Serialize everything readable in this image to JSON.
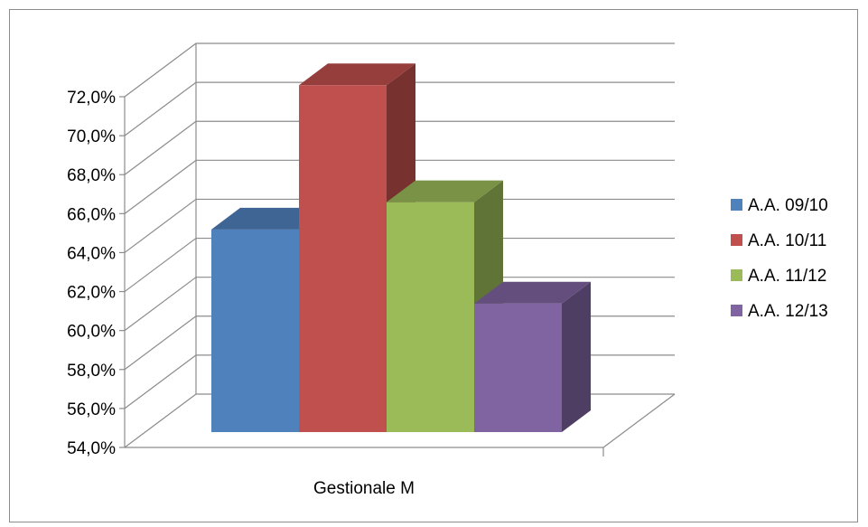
{
  "chart_data": {
    "type": "bar",
    "categories": [
      "Gestionale M"
    ],
    "series": [
      {
        "name": "A.A. 09/10",
        "values": [
          64.4
        ],
        "color": "#4F81BD"
      },
      {
        "name": "A.A. 10/11",
        "values": [
          71.8
        ],
        "color": "#C0504D"
      },
      {
        "name": "A.A. 11/12",
        "values": [
          65.8
        ],
        "color": "#9BBB59"
      },
      {
        "name": "A.A. 12/13",
        "values": [
          60.6
        ],
        "color": "#8064A2"
      }
    ],
    "ylim": [
      54,
      72
    ],
    "yticks": [
      "54,0%",
      "56,0%",
      "58,0%",
      "60,0%",
      "62,0%",
      "64,0%",
      "66,0%",
      "68,0%",
      "70,0%",
      "72,0%"
    ],
    "ytick_values": [
      54,
      56,
      58,
      60,
      62,
      64,
      66,
      68,
      70,
      72
    ],
    "grid": true,
    "legend": "right",
    "style": "3d-clustered-column"
  }
}
